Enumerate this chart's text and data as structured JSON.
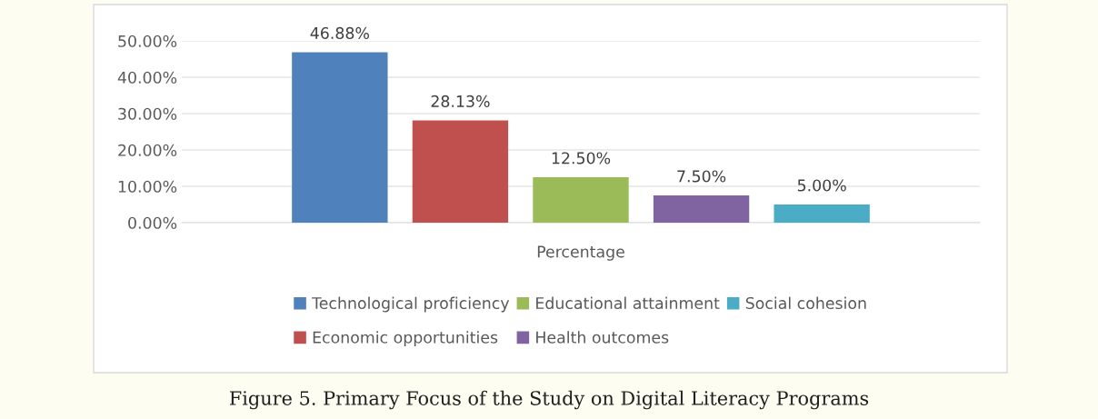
{
  "chart_data": {
    "type": "bar",
    "categories": [
      "Percentage"
    ],
    "series": [
      {
        "name": "Technological proficiency",
        "color": "#4f81bd",
        "values": [
          46.88
        ],
        "value_labels": [
          "46.88%"
        ]
      },
      {
        "name": "Economic opportunities",
        "color": "#c0504d",
        "values": [
          28.13
        ],
        "value_labels": [
          "28.13%"
        ]
      },
      {
        "name": "Educational attainment",
        "color": "#9bbb59",
        "values": [
          12.5
        ],
        "value_labels": [
          "12.50%"
        ]
      },
      {
        "name": "Health outcomes",
        "color": "#8064a2",
        "values": [
          7.5
        ],
        "value_labels": [
          "7.50%"
        ]
      },
      {
        "name": "Social cohesion",
        "color": "#4bacc6",
        "values": [
          5.0
        ],
        "value_labels": [
          "5.00%"
        ]
      }
    ],
    "ylim": [
      0,
      50
    ],
    "yticks": [
      {
        "value": 0,
        "label": "0.00%"
      },
      {
        "value": 10,
        "label": "10.00%"
      },
      {
        "value": 20,
        "label": "20.00%"
      },
      {
        "value": 30,
        "label": "30.00%"
      },
      {
        "value": 40,
        "label": "40.00%"
      },
      {
        "value": 50,
        "label": "50.00%"
      }
    ],
    "grid": "y",
    "legend": "bottom",
    "annotations": [
      "Figure 5. Primary Focus of the Study on Digital Literacy Programs"
    ]
  }
}
